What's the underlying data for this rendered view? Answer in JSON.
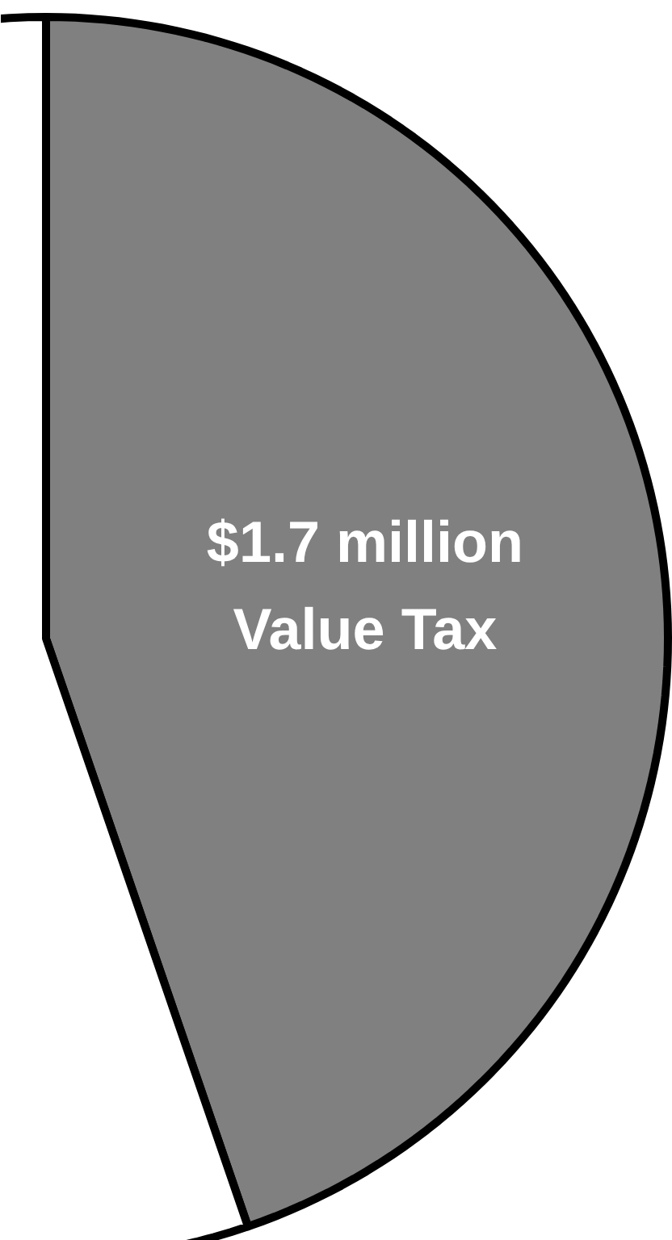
{
  "chart_data": {
    "type": "pie",
    "categories": [
      "Value Tax",
      null
    ],
    "values": [
      1.7,
      2.1
    ],
    "colors": [
      "#808080",
      "#ffffff"
    ],
    "value_labels": [
      "$1.7 million",
      null
    ]
  }
}
